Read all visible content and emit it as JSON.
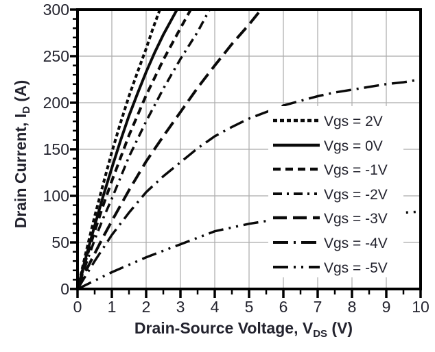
{
  "figure": {
    "background": "#ffffff",
    "text_color": "#23232e",
    "grid_color": "#ababab",
    "axis_color": "#000000",
    "curve_color": "#0a0a0a",
    "legend_bg": "#ffffff"
  },
  "chart_data": {
    "type": "line",
    "title": "",
    "xlabel": "Drain-Source Voltage, V_DS (V)",
    "ylabel": "Drain Current, I_D (A)",
    "xlabel_parts": {
      "pre": "Drain-Source Voltage, V",
      "sub": "DS",
      "post": " (V)"
    },
    "ylabel_parts": {
      "pre": "Drain Current, I",
      "sub": "D",
      "post": " (A)"
    },
    "xlim": [
      0,
      10
    ],
    "ylim": [
      0,
      300
    ],
    "x_ticks": [
      0,
      1,
      2,
      3,
      4,
      5,
      6,
      7,
      8,
      9,
      10
    ],
    "y_ticks": [
      0,
      50,
      100,
      150,
      200,
      250,
      300
    ],
    "x_minor_step": 0.5,
    "y_minor_step": 10,
    "grid": true,
    "legend_position": "inside-right vertical list on white box",
    "series": [
      {
        "name": "Vgs = 2V",
        "style": "short-dash",
        "dash": "6 4",
        "width": 4,
        "points": [
          [
            0,
            0
          ],
          [
            0.25,
            40
          ],
          [
            0.5,
            78
          ],
          [
            0.75,
            113
          ],
          [
            1,
            147
          ],
          [
            1.25,
            178
          ],
          [
            1.5,
            207
          ],
          [
            1.75,
            233
          ],
          [
            2,
            258
          ],
          [
            2.2,
            280
          ],
          [
            2.4,
            300
          ]
        ]
      },
      {
        "name": "Vgs = 0V",
        "style": "solid",
        "dash": "",
        "width": 4,
        "points": [
          [
            0,
            0
          ],
          [
            0.25,
            35
          ],
          [
            0.5,
            68
          ],
          [
            0.75,
            100
          ],
          [
            1,
            130
          ],
          [
            1.25,
            159
          ],
          [
            1.5,
            186
          ],
          [
            1.75,
            210
          ],
          [
            2,
            233
          ],
          [
            2.25,
            254
          ],
          [
            2.5,
            273
          ],
          [
            2.9,
            300
          ]
        ]
      },
      {
        "name": "Vgs = -1V",
        "style": "medium-dash",
        "dash": "11 7",
        "width": 4,
        "points": [
          [
            0,
            0
          ],
          [
            0.25,
            32
          ],
          [
            0.5,
            62
          ],
          [
            0.75,
            90
          ],
          [
            1,
            116
          ],
          [
            1.5,
            165
          ],
          [
            2,
            208
          ],
          [
            2.5,
            246
          ],
          [
            3,
            280
          ],
          [
            3.3,
            300
          ]
        ]
      },
      {
        "name": "Vgs = -2V",
        "style": "dash-dot",
        "dash": "13 7 3 7",
        "width": 3.5,
        "points": [
          [
            0,
            0
          ],
          [
            0.25,
            27
          ],
          [
            0.5,
            53
          ],
          [
            0.75,
            76
          ],
          [
            1,
            97
          ],
          [
            1.5,
            142
          ],
          [
            2,
            180
          ],
          [
            2.5,
            215
          ],
          [
            3,
            247
          ],
          [
            3.5,
            276
          ],
          [
            3.85,
            300
          ]
        ]
      },
      {
        "name": "Vgs = -3V",
        "style": "long-dash",
        "dash": "20 9",
        "width": 4,
        "points": [
          [
            0,
            0
          ],
          [
            0.25,
            20
          ],
          [
            0.5,
            38
          ],
          [
            0.75,
            56
          ],
          [
            1,
            73
          ],
          [
            1.5,
            106
          ],
          [
            2,
            137
          ],
          [
            2.5,
            164
          ],
          [
            3,
            190
          ],
          [
            3.5,
            216
          ],
          [
            4,
            240
          ],
          [
            4.5,
            263
          ],
          [
            5,
            284
          ],
          [
            5.35,
            300
          ]
        ]
      },
      {
        "name": "Vgs = -4V",
        "style": "long-dash-dot",
        "dash": "22 8 3 8",
        "width": 3.5,
        "points": [
          [
            0,
            0
          ],
          [
            0.5,
            30
          ],
          [
            1,
            58
          ],
          [
            1.5,
            82
          ],
          [
            2,
            104
          ],
          [
            2.5,
            121
          ],
          [
            3,
            136
          ],
          [
            3.5,
            151
          ],
          [
            4,
            164
          ],
          [
            4.5,
            174
          ],
          [
            5,
            183
          ],
          [
            5.5,
            190
          ],
          [
            6,
            197
          ],
          [
            6.5,
            202
          ],
          [
            7,
            207
          ],
          [
            7.5,
            211
          ],
          [
            8,
            214
          ],
          [
            8.5,
            217
          ],
          [
            9,
            220
          ],
          [
            9.5,
            222
          ],
          [
            10,
            225
          ]
        ]
      },
      {
        "name": "Vgs = -5V",
        "style": "long-dash-dot-dot",
        "dash": "22 8 3 8 3 8",
        "width": 3.5,
        "points": [
          [
            0,
            0
          ],
          [
            0.5,
            9
          ],
          [
            1,
            18
          ],
          [
            1.5,
            26
          ],
          [
            2,
            34
          ],
          [
            2.5,
            41
          ],
          [
            3,
            48
          ],
          [
            3.5,
            55
          ],
          [
            4,
            62
          ],
          [
            4.5,
            66
          ],
          [
            5,
            70
          ],
          [
            5.5,
            73
          ],
          [
            6,
            75
          ],
          [
            6.5,
            77
          ],
          [
            7,
            78
          ],
          [
            7.5,
            79
          ],
          [
            8,
            80
          ],
          [
            8.5,
            81
          ],
          [
            9,
            81
          ],
          [
            9.5,
            82
          ],
          [
            10,
            83
          ]
        ]
      }
    ]
  }
}
